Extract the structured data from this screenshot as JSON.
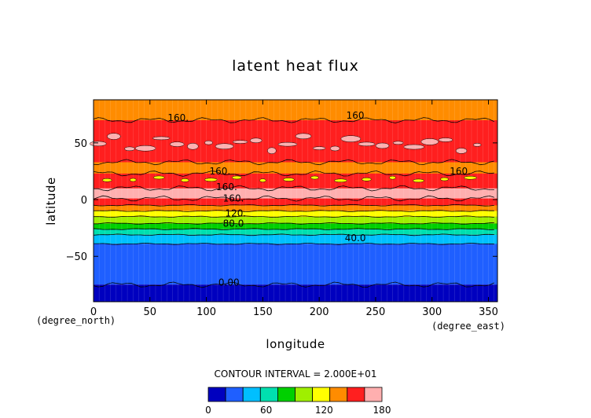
{
  "chart_data": {
    "type": "heatmap",
    "title": "latent heat flux",
    "xlabel": "longitude",
    "ylabel": "latitude",
    "x_unit": "(degree_east)",
    "y_unit": "(degree_north)",
    "xlim": [
      0,
      358
    ],
    "ylim": [
      -90,
      88
    ],
    "x_ticks": [
      0,
      50,
      100,
      150,
      200,
      250,
      300,
      350
    ],
    "y_ticks": [
      50,
      0,
      -50
    ],
    "y_tick_labels": [
      "50",
      "0",
      "−50"
    ],
    "contour_interval_text": "CONTOUR INTERVAL = 2.000E+01",
    "levels": [
      0,
      20,
      40,
      60,
      80,
      100,
      120,
      140,
      160,
      180
    ],
    "colors": [
      "#7f1fbf",
      "#0000bf",
      "#1f5fff",
      "#00bfff",
      "#00dfaf",
      "#00d000",
      "#9fef00",
      "#ffff00",
      "#ff8c00",
      "#ff1f1f",
      "#ffafaf"
    ],
    "colorbar": {
      "colors": [
        "#0000bf",
        "#1f5fff",
        "#00bfff",
        "#00dfaf",
        "#00d000",
        "#9fef00",
        "#ffff00",
        "#ff8c00",
        "#ff1f1f",
        "#ffafaf"
      ],
      "tick_values": [
        0,
        60,
        120,
        180
      ],
      "tick_labels": [
        "0",
        "60",
        "120",
        "180"
      ]
    },
    "zonal_bands": [
      {
        "lat_min": -90,
        "lat_max": -75,
        "value_range": [
          0,
          20
        ]
      },
      {
        "lat_min": -75,
        "lat_max": -39,
        "value_range": [
          20,
          40
        ]
      },
      {
        "lat_min": -39,
        "lat_max": -31,
        "value_range": [
          40,
          60
        ]
      },
      {
        "lat_min": -31,
        "lat_max": -26,
        "value_range": [
          60,
          80
        ]
      },
      {
        "lat_min": -26,
        "lat_max": -21,
        "value_range": [
          80,
          100
        ]
      },
      {
        "lat_min": -21,
        "lat_max": -15,
        "value_range": [
          100,
          120
        ]
      },
      {
        "lat_min": -15,
        "lat_max": -10,
        "value_range": [
          120,
          140
        ]
      },
      {
        "lat_min": -10,
        "lat_max": -5,
        "value_range": [
          140,
          160
        ]
      },
      {
        "lat_min": -5,
        "lat_max": 1,
        "value_range": [
          160,
          180
        ]
      },
      {
        "lat_min": 1,
        "lat_max": 10,
        "value_range": [
          180,
          200
        ]
      },
      {
        "lat_min": 10,
        "lat_max": 23,
        "value_range": [
          160,
          180
        ]
      },
      {
        "lat_min": 23,
        "lat_max": 33,
        "value_range": [
          140,
          160
        ]
      },
      {
        "lat_min": 33,
        "lat_max": 70,
        "value_range": [
          160,
          180
        ]
      },
      {
        "lat_min": 70,
        "lat_max": 88,
        "value_range": [
          140,
          160
        ]
      }
    ],
    "contour_labels": [
      {
        "text": "160.",
        "lon": 75,
        "lat": 72
      },
      {
        "text": "160",
        "lon": 232,
        "lat": 74
      },
      {
        "text": "160.",
        "lon": 112,
        "lat": 25
      },
      {
        "text": "160.",
        "lon": 325,
        "lat": 25
      },
      {
        "text": "160.",
        "lon": 118,
        "lat": 11
      },
      {
        "text": "160.",
        "lon": 124,
        "lat": 1
      },
      {
        "text": "120.",
        "lon": 126,
        "lat": -12
      },
      {
        "text": "80.0",
        "lon": 124,
        "lat": -21
      },
      {
        "text": "40.0",
        "lon": 232,
        "lat": -34
      },
      {
        "text": "0.00",
        "lon": 120,
        "lat": -73
      }
    ]
  }
}
